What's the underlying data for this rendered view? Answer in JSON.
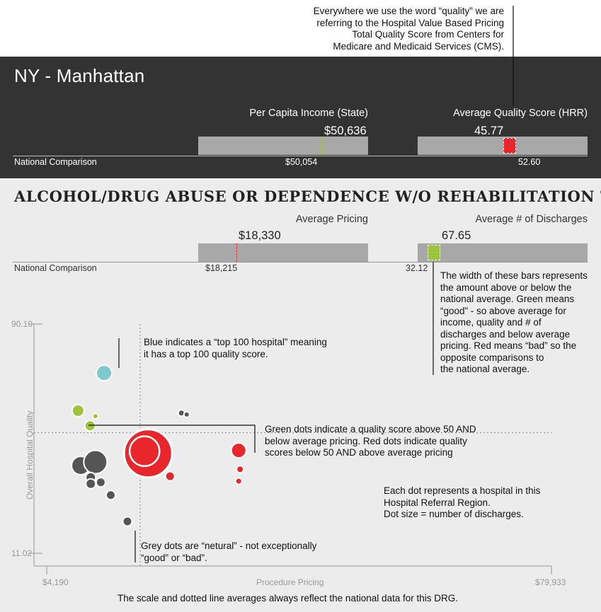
{
  "quality_note": [
    "Everywhere we use the word “quality” we are",
    "referring to the Hospital Value Based Pricing",
    "Total Quality Score from Centers for",
    "Medicare and Medicaid Services (CMS)."
  ],
  "region": "NY - Manhattan",
  "income": {
    "label": "Per Capita Income (State)",
    "value": "$50,636",
    "national": "$50,054"
  },
  "quality": {
    "label": "Average Quality Score (HRR)",
    "value": "45.77",
    "national": "52.60"
  },
  "national_comparison_label": "National Comparison",
  "drg_title": "ALCOHOL/DRUG ABUSE OR DEPENDENCE W/O REHABILITATION T...",
  "pricing": {
    "label": "Average Pricing",
    "value": "$18,330",
    "national": "$18,215"
  },
  "discharges": {
    "label": "Average # of Discharges",
    "value": "67.65",
    "national": "32.12"
  },
  "bar_note": [
    "The width of these bars represents",
    "the amount above or below the",
    "national average. Green means",
    "“good” - so above average for",
    "income, quality and # of",
    "discharges and below average",
    "pricing. Red means “bad” so the",
    "opposite comparisons to",
    "the national average."
  ],
  "colors": {
    "good": "#9bc53d",
    "bad": "#e8262b",
    "top100": "#7ec9cc",
    "neutral": "#555555",
    "dark_bg": "#333333",
    "light_bg": "#ececec",
    "bar": "#a8a8a8"
  },
  "chart_data": {
    "type": "scatter",
    "ylabel": "Overall Hospital Quality",
    "xlabel": "Procedure Pricing",
    "xlim": [
      4190,
      79933
    ],
    "ylim": [
      11.02,
      90.1
    ],
    "x_tick_labels": [
      "$4,190",
      "$79,933"
    ],
    "y_tick_labels": [
      "90.10",
      "11.02"
    ],
    "national_avg_price": 18215,
    "national_avg_quality": 52.6,
    "points": [
      {
        "x": 12800,
        "y": 73.2,
        "size": 11,
        "category": "top100"
      },
      {
        "x": 8900,
        "y": 60.2,
        "size": 8.5,
        "category": "good"
      },
      {
        "x": 11500,
        "y": 58.3,
        "size": 4,
        "category": "good"
      },
      {
        "x": 10700,
        "y": 55.0,
        "size": 7.5,
        "category": "good"
      },
      {
        "x": 24400,
        "y": 59.4,
        "size": 4.5,
        "category": "neutral"
      },
      {
        "x": 25200,
        "y": 58.9,
        "size": 4,
        "category": "neutral"
      },
      {
        "x": 19400,
        "y": 45.5,
        "size": 34,
        "category": "bad"
      },
      {
        "x": 33000,
        "y": 46.5,
        "size": 10.5,
        "category": "bad"
      },
      {
        "x": 33200,
        "y": 40.0,
        "size": 5,
        "category": "bad"
      },
      {
        "x": 22700,
        "y": 37.6,
        "size": 6.5,
        "category": "bad"
      },
      {
        "x": 33000,
        "y": 35.9,
        "size": 4.5,
        "category": "bad"
      },
      {
        "x": 9300,
        "y": 41.3,
        "size": 13,
        "category": "neutral"
      },
      {
        "x": 11500,
        "y": 42.5,
        "size": 16.5,
        "category": "neutral"
      },
      {
        "x": 10800,
        "y": 37.2,
        "size": 7,
        "category": "neutral"
      },
      {
        "x": 10800,
        "y": 35.0,
        "size": 7,
        "category": "neutral"
      },
      {
        "x": 12300,
        "y": 35.5,
        "size": 6.5,
        "category": "neutral"
      },
      {
        "x": 13800,
        "y": 31.1,
        "size": 6.5,
        "category": "neutral"
      },
      {
        "x": 16300,
        "y": 22.0,
        "size": 6.5,
        "category": "neutral"
      }
    ]
  },
  "annotations": {
    "top100": [
      "Blue indicates a “top 100 hospital” meaning",
      "it has a top 100 quality score."
    ],
    "green_red": [
      "Green dots indicate a quality score above 50 AND",
      "below average pricing. Red dots indicate quality",
      "scores below 50 AND above average pricing"
    ],
    "dots": [
      "Each dot represents a hospital in this",
      "Hospital Referral Region.",
      "Dot size = number of discharges."
    ],
    "grey": [
      "Grey dots are “netural” - not exceptionally",
      "“good” or “bad”."
    ],
    "footer": "The scale and dotted line averages always reflect the national data for this DRG."
  }
}
